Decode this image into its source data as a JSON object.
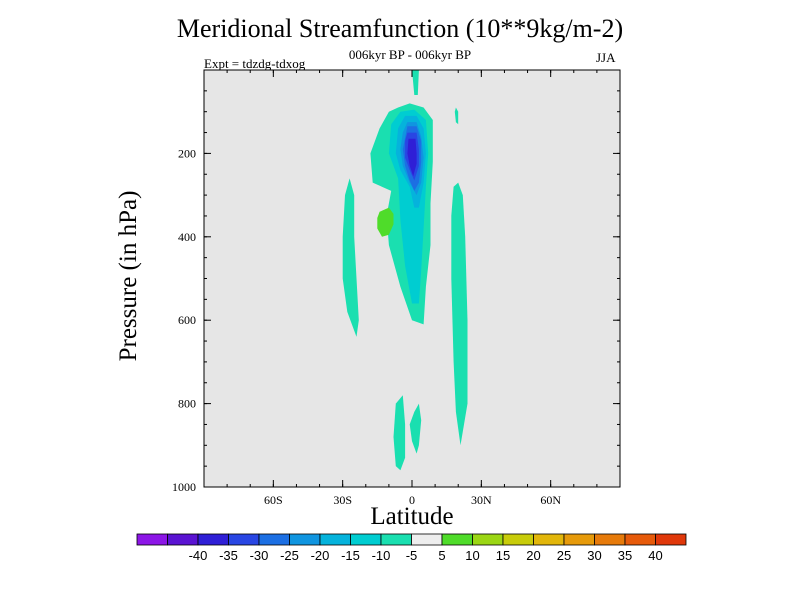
{
  "chart_data": {
    "type": "heatmap",
    "title": "Meridional Streamfunction (10**9kg/m-2)",
    "subtitle": "006kyr BP - 006kyr BP",
    "left_string": "Expt = tdzdg-tdxog",
    "right_string": "JJA",
    "xlabel": "Latitude",
    "ylabel": "Pressure (in hPa)",
    "x_tick_labels": [
      "60S",
      "30S",
      "0",
      "30N",
      "60N"
    ],
    "x_ticks": [
      -60,
      -30,
      0,
      30,
      60
    ],
    "xlim": [
      -90,
      90
    ],
    "y_tick_labels": [
      "200",
      "400",
      "600",
      "800",
      "1000"
    ],
    "y_ticks": [
      200,
      400,
      600,
      800,
      1000
    ],
    "ylim": [
      1000,
      0
    ],
    "background_color": "#e6e6e6",
    "colorbar": {
      "labels": [
        "-40",
        "-35",
        "-30",
        "-25",
        "-20",
        "-15",
        "-10",
        "-5",
        "5",
        "10",
        "15",
        "20",
        "25",
        "30",
        "35",
        "40"
      ],
      "colors": [
        "#8c16e6",
        "#5a13d2",
        "#2f1fd6",
        "#2946e3",
        "#1c6fe3",
        "#1095e0",
        "#05b3dc",
        "#00cdd1",
        "#1adfb0",
        "#eeeeee",
        "#4fdc2a",
        "#9bd614",
        "#c8cc0a",
        "#e2b60a",
        "#e69a0a",
        "#e67a0a",
        "#e65a0a",
        "#e0380a"
      ]
    },
    "features": [
      {
        "name": "upper-negative-core",
        "lat_range": [
          -20,
          8
        ],
        "p_range": [
          50,
          300
        ],
        "min_value": -35,
        "sign": "negative"
      },
      {
        "name": "lower-tropical-negative-tongue",
        "lat_range": [
          -12,
          8
        ],
        "p_range": [
          250,
          620
        ],
        "min_value": -10,
        "sign": "negative"
      },
      {
        "name": "southern-subtropical-band",
        "lat_range": [
          -30,
          -22
        ],
        "p_range": [
          260,
          640
        ],
        "value": -5,
        "sign": "negative"
      },
      {
        "name": "northern-tropical-band",
        "lat_range": [
          16,
          24
        ],
        "p_range": [
          270,
          900
        ],
        "value": -5,
        "sign": "negative"
      },
      {
        "name": "lower-equatorial-cells",
        "lat_range": [
          -8,
          5
        ],
        "p_range": [
          800,
          960
        ],
        "value": -5,
        "sign": "negative"
      },
      {
        "name": "upper-tropopause-patch",
        "lat_range": [
          0,
          3
        ],
        "p_range": [
          0,
          60
        ],
        "value": -5,
        "sign": "negative"
      },
      {
        "name": "small-northern-patch",
        "lat_range": [
          18,
          21
        ],
        "p_range": [
          90,
          130
        ],
        "value": -5,
        "sign": "negative"
      },
      {
        "name": "positive-cell",
        "lat_range": [
          -16,
          -7
        ],
        "p_range": [
          330,
          400
        ],
        "value": 10,
        "sign": "positive"
      }
    ]
  }
}
